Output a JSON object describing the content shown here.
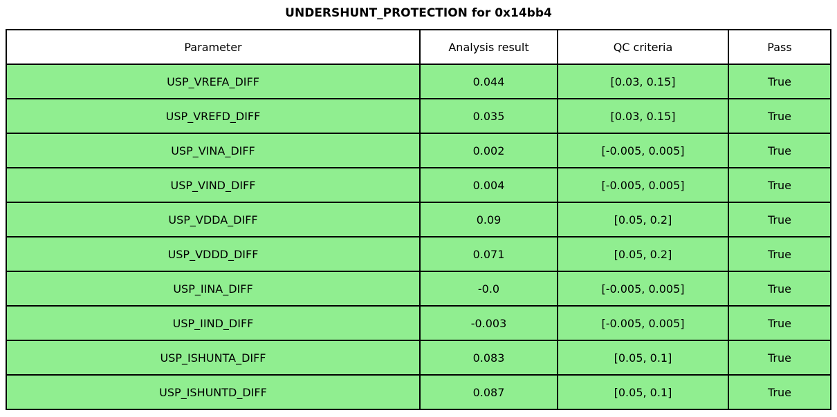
{
  "title": "UNDERSHUNT_PROTECTION for 0x14bb4",
  "colors": {
    "row_bg": "#90EE90",
    "header_bg": "#FFFFFF",
    "border": "#000000",
    "text": "#000000"
  },
  "chart_data": {
    "type": "table",
    "title": "UNDERSHUNT_PROTECTION for 0x14bb4",
    "columns": [
      "Parameter",
      "Analysis result",
      "QC criteria",
      "Pass"
    ],
    "rows": [
      [
        "USP_VREFA_DIFF",
        "0.044",
        "[0.03, 0.15]",
        "True"
      ],
      [
        "USP_VREFD_DIFF",
        "0.035",
        "[0.03, 0.15]",
        "True"
      ],
      [
        "USP_VINA_DIFF",
        "0.002",
        "[-0.005, 0.005]",
        "True"
      ],
      [
        "USP_VIND_DIFF",
        "0.004",
        "[-0.005, 0.005]",
        "True"
      ],
      [
        "USP_VDDA_DIFF",
        "0.09",
        "[0.05, 0.2]",
        "True"
      ],
      [
        "USP_VDDD_DIFF",
        "0.071",
        "[0.05, 0.2]",
        "True"
      ],
      [
        "USP_IINA_DIFF",
        "-0.0",
        "[-0.005, 0.005]",
        "True"
      ],
      [
        "USP_IIND_DIFF",
        "-0.003",
        "[-0.005, 0.005]",
        "True"
      ],
      [
        "USP_ISHUNTA_DIFF",
        "0.083",
        "[0.05, 0.1]",
        "True"
      ],
      [
        "USP_ISHUNTD_DIFF",
        "0.087",
        "[0.05, 0.1]",
        "True"
      ]
    ]
  }
}
